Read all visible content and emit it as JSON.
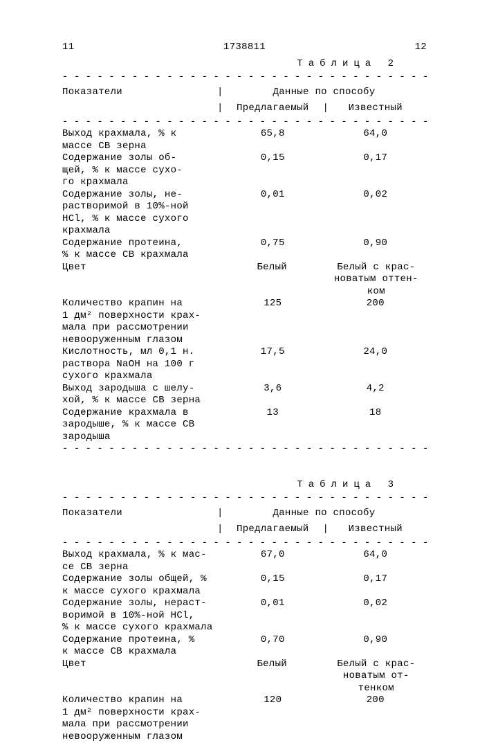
{
  "header": {
    "page_left": "11",
    "doc_number": "1738811",
    "page_right": "12"
  },
  "dash_line": "- - - - - - - - - - - - - - - - - - - - - - - - - - - - - - - - - - -",
  "table2": {
    "title": "Таблица 2",
    "header_left": "Показатели",
    "header_right": "Данные по способу",
    "col1_label": "Предлагаемый",
    "col2_label": "Известный",
    "rows": [
      {
        "label": "Выход крахмала, % к\nмассе СВ зерна",
        "v1": "65,8",
        "v2": "64,0"
      },
      {
        "label": "Содержание золы об-\nщей, % к массе сухо-\nго крахмала",
        "v1": "0,15",
        "v2": "0,17"
      },
      {
        "label": "Содержание золы, не-\nрастворимой в 10%-ной\nHCl, % к массе сухого\nкрахмала",
        "v1": "0,01",
        "v2": "0,02"
      },
      {
        "label": "Содержание протеина,\n% к массе СВ крахмала",
        "v1": "0,75",
        "v2": "0,90"
      },
      {
        "label": "Цвет",
        "v1": "Белый",
        "v2": "Белый с крас-\nноватым оттен-\nком"
      },
      {
        "label": "Количество крапин на\n1 дм² поверхности крах-\nмала при рассмотрении\nневооруженным глазом",
        "v1": "125",
        "v2": "200"
      },
      {
        "label": "Кислотность, мл 0,1 н.\nраствора NaOH на 100 г\nсухого крахмала",
        "v1": "17,5",
        "v2": "24,0"
      },
      {
        "label": "Выход зародыша с шелу-\nхой, % к массе СВ зерна",
        "v1": "3,6",
        "v2": "4,2"
      },
      {
        "label": "Содержание крахмала в\nзародыше, % к массе СВ\nзародыша",
        "v1": "13",
        "v2": "18"
      }
    ]
  },
  "table3": {
    "title": "Таблица 3",
    "header_left": "Показатели",
    "header_right": "Данные по способу",
    "col1_label": "Предлагаемый",
    "col2_label": "Известный",
    "rows": [
      {
        "label": "Выход крахмала, % к мас-\nсе СВ зерна",
        "v1": "67,0",
        "v2": "64,0"
      },
      {
        "label": "Содержание золы общей, %\nк массе сухого крахмала",
        "v1": "0,15",
        "v2": "0,17"
      },
      {
        "label": "Содержание золы, нераст-\nворимой в 10%-ной HCl,\n% к массе сухого крахмала",
        "v1": "0,01",
        "v2": "0,02"
      },
      {
        "label": "Содержание протеина, %\nк массе СВ крахмала",
        "v1": "0,70",
        "v2": "0,90"
      },
      {
        "label": "Цвет",
        "v1": "Белый",
        "v2": "Белый с крас-\nноватым от-\nтенком"
      },
      {
        "label": "Количество крапин на\n1 дм² поверхности крах-\nмала при рассмотрении\nневооруженным глазом",
        "v1": "120",
        "v2": "200"
      }
    ]
  }
}
